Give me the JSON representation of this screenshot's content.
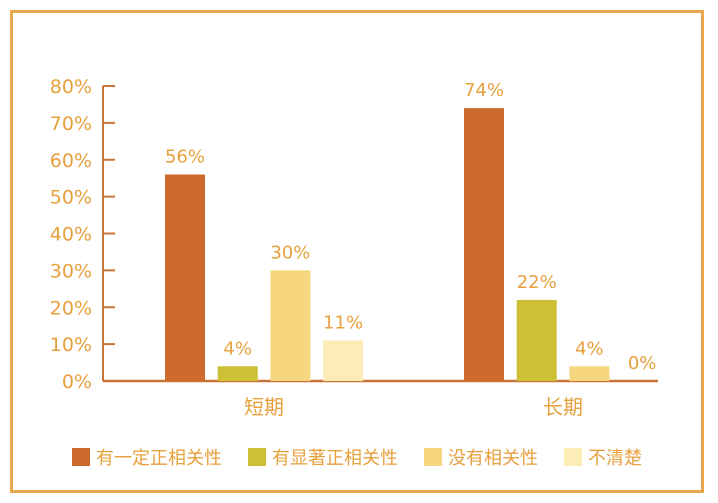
{
  "chart_data": {
    "type": "bar",
    "categories": [
      "短期",
      "长期"
    ],
    "series": [
      {
        "name": "有一定正相关性",
        "values": [
          56,
          74
        ],
        "labels": [
          "56%",
          "74%"
        ],
        "color": "#CC6B2C"
      },
      {
        "name": "有显著正相关性",
        "values": [
          4,
          22
        ],
        "labels": [
          "4%",
          "22%"
        ],
        "color": "#CDBF36"
      },
      {
        "name": "没有相关性",
        "values": [
          30,
          4
        ],
        "labels": [
          "30%",
          "4%"
        ],
        "color": "#F6D77F"
      },
      {
        "name": "不清楚",
        "values": [
          11,
          0
        ],
        "labels": [
          "11%",
          "0%"
        ],
        "color": "#FCEDB7"
      }
    ],
    "ylim": [
      0,
      80
    ],
    "yticks": [
      0,
      10,
      20,
      30,
      40,
      50,
      60,
      70,
      80
    ],
    "ytick_labels": [
      "0%",
      "10%",
      "20%",
      "30%",
      "40%",
      "50%",
      "60%",
      "70%",
      "80%"
    ],
    "legend_position": "bottom",
    "grid": false
  },
  "colors": {
    "axis": "#C97438",
    "text": "#E7A03D",
    "frame": "#E9A94B"
  }
}
